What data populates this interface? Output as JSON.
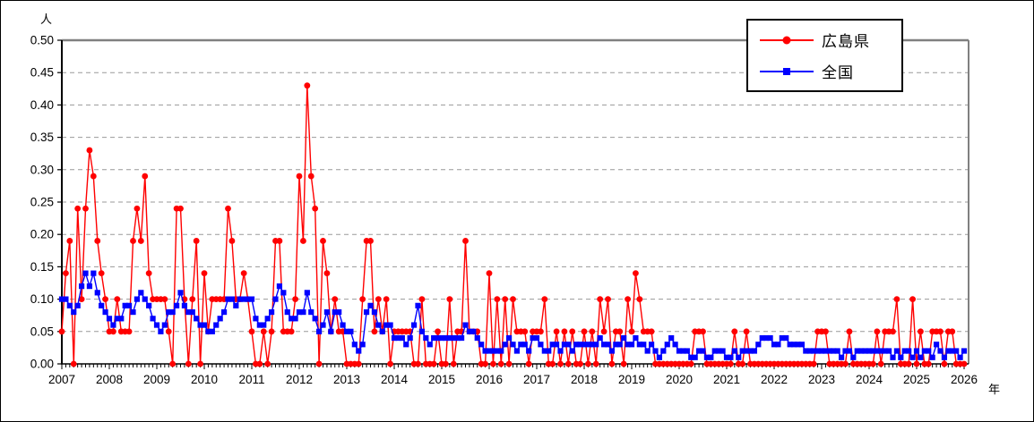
{
  "figure": {
    "y_axis_unit": "人",
    "x_axis_unit": "年",
    "background": "#ffffff",
    "plot_frame_color": "#808080",
    "axis_color": "#000000",
    "gridline_color": "#999999"
  },
  "legend": {
    "position": "top-right",
    "items": [
      {
        "label": "広島県",
        "color": "#ff0000",
        "marker": "circle"
      },
      {
        "label": "全国",
        "color": "#0000ff",
        "marker": "square"
      }
    ]
  },
  "chart_data": {
    "type": "line",
    "title": "",
    "xlabel": "年",
    "ylabel": "人",
    "x_interval": "monthly",
    "x_start_year": 2007,
    "x_end_year": 2026,
    "x_tick_labels": [
      "2007",
      "2008",
      "2009",
      "2010",
      "2011",
      "2012",
      "2013",
      "2014",
      "2015",
      "2016",
      "2017",
      "2018",
      "2019",
      "2020",
      "2021",
      "2022",
      "2023",
      "2024",
      "2025",
      "2026"
    ],
    "y_tick_labels": [
      "0.00",
      "0.05",
      "0.10",
      "0.15",
      "0.20",
      "0.25",
      "0.30",
      "0.35",
      "0.40",
      "0.45",
      "0.50"
    ],
    "ylim": [
      0,
      0.5
    ],
    "ytick_step": 0.05,
    "grid": "horizontal-dashed",
    "legend_position": "top-right",
    "series": [
      {
        "name": "広島県",
        "color": "#ff0000",
        "marker": "circle",
        "values": [
          0.05,
          0.14,
          0.19,
          0.0,
          0.24,
          0.1,
          0.24,
          0.33,
          0.29,
          0.19,
          0.14,
          0.1,
          0.05,
          0.05,
          0.1,
          0.05,
          0.05,
          0.05,
          0.19,
          0.24,
          0.19,
          0.29,
          0.14,
          0.1,
          0.1,
          0.1,
          0.1,
          0.05,
          0.0,
          0.24,
          0.24,
          0.1,
          0.0,
          0.1,
          0.19,
          0.0,
          0.14,
          0.05,
          0.1,
          0.1,
          0.1,
          0.1,
          0.24,
          0.19,
          0.1,
          0.1,
          0.14,
          0.1,
          0.05,
          0.0,
          0.0,
          0.05,
          0.0,
          0.05,
          0.19,
          0.19,
          0.05,
          0.05,
          0.05,
          0.1,
          0.29,
          0.19,
          0.43,
          0.29,
          0.24,
          0.0,
          0.19,
          0.14,
          0.05,
          0.1,
          0.05,
          0.05,
          0.0,
          0.0,
          0.0,
          0.0,
          0.1,
          0.19,
          0.19,
          0.05,
          0.1,
          0.05,
          0.1,
          0.0,
          0.05,
          0.05,
          0.05,
          0.05,
          0.05,
          0.0,
          0.0,
          0.1,
          0.0,
          0.0,
          0.0,
          0.05,
          0.0,
          0.0,
          0.1,
          0.0,
          0.05,
          0.05,
          0.19,
          0.05,
          0.05,
          0.05,
          0.0,
          0.0,
          0.14,
          0.0,
          0.1,
          0.0,
          0.1,
          0.0,
          0.1,
          0.05,
          0.05,
          0.05,
          0.0,
          0.05,
          0.05,
          0.05,
          0.1,
          0.0,
          0.0,
          0.05,
          0.0,
          0.05,
          0.0,
          0.05,
          0.0,
          0.0,
          0.05,
          0.0,
          0.05,
          0.0,
          0.1,
          0.05,
          0.1,
          0.0,
          0.05,
          0.05,
          0.0,
          0.1,
          0.05,
          0.14,
          0.1,
          0.05,
          0.05,
          0.05,
          0.0,
          0.0,
          0.0,
          0.0,
          0.0,
          0.0,
          0.0,
          0.0,
          0.0,
          0.0,
          0.05,
          0.05,
          0.05,
          0.0,
          0.0,
          0.0,
          0.0,
          0.0,
          0.0,
          0.0,
          0.05,
          0.0,
          0.0,
          0.05,
          0.0,
          0.0,
          0.0,
          0.0,
          0.0,
          0.0,
          0.0,
          0.0,
          0.0,
          0.0,
          0.0,
          0.0,
          0.0,
          0.0,
          0.0,
          0.0,
          0.0,
          0.05,
          0.05,
          0.05,
          0.0,
          0.0,
          0.0,
          0.0,
          0.0,
          0.05,
          0.0,
          0.0,
          0.0,
          0.0,
          0.0,
          0.0,
          0.05,
          0.0,
          0.05,
          0.05,
          0.05,
          0.1,
          0.0,
          0.0,
          0.0,
          0.1,
          0.0,
          0.05,
          0.0,
          0.0,
          0.05,
          0.05,
          0.05,
          0.0,
          0.05,
          0.05,
          0.0,
          0.0,
          0.0
        ]
      },
      {
        "name": "全国",
        "color": "#0000ff",
        "marker": "square",
        "values": [
          0.1,
          0.1,
          0.09,
          0.08,
          0.09,
          0.12,
          0.14,
          0.12,
          0.14,
          0.11,
          0.09,
          0.08,
          0.07,
          0.06,
          0.07,
          0.07,
          0.09,
          0.09,
          0.08,
          0.1,
          0.11,
          0.1,
          0.09,
          0.07,
          0.06,
          0.05,
          0.06,
          0.08,
          0.08,
          0.09,
          0.11,
          0.09,
          0.08,
          0.08,
          0.07,
          0.06,
          0.06,
          0.05,
          0.05,
          0.06,
          0.07,
          0.08,
          0.1,
          0.1,
          0.09,
          0.1,
          0.1,
          0.1,
          0.1,
          0.07,
          0.06,
          0.06,
          0.07,
          0.08,
          0.1,
          0.12,
          0.11,
          0.08,
          0.07,
          0.07,
          0.08,
          0.08,
          0.11,
          0.08,
          0.07,
          0.05,
          0.06,
          0.08,
          0.05,
          0.08,
          0.08,
          0.06,
          0.05,
          0.05,
          0.03,
          0.02,
          0.03,
          0.08,
          0.09,
          0.08,
          0.06,
          0.05,
          0.06,
          0.06,
          0.04,
          0.04,
          0.04,
          0.03,
          0.04,
          0.06,
          0.09,
          0.05,
          0.04,
          0.03,
          0.04,
          0.04,
          0.04,
          0.04,
          0.04,
          0.04,
          0.04,
          0.04,
          0.06,
          0.05,
          0.05,
          0.04,
          0.03,
          0.02,
          0.02,
          0.02,
          0.02,
          0.02,
          0.03,
          0.04,
          0.03,
          0.02,
          0.03,
          0.03,
          0.02,
          0.04,
          0.04,
          0.03,
          0.02,
          0.02,
          0.03,
          0.03,
          0.02,
          0.03,
          0.03,
          0.02,
          0.03,
          0.03,
          0.03,
          0.03,
          0.03,
          0.03,
          0.04,
          0.03,
          0.03,
          0.02,
          0.03,
          0.03,
          0.04,
          0.03,
          0.03,
          0.04,
          0.03,
          0.03,
          0.02,
          0.03,
          0.02,
          0.01,
          0.02,
          0.03,
          0.04,
          0.03,
          0.02,
          0.02,
          0.02,
          0.01,
          0.01,
          0.02,
          0.02,
          0.01,
          0.01,
          0.02,
          0.02,
          0.02,
          0.01,
          0.01,
          0.02,
          0.01,
          0.02,
          0.02,
          0.02,
          0.02,
          0.03,
          0.04,
          0.04,
          0.04,
          0.03,
          0.03,
          0.04,
          0.04,
          0.03,
          0.03,
          0.03,
          0.03,
          0.02,
          0.02,
          0.02,
          0.02,
          0.02,
          0.02,
          0.02,
          0.02,
          0.02,
          0.01,
          0.02,
          0.02,
          0.01,
          0.02,
          0.02,
          0.02,
          0.02,
          0.02,
          0.02,
          0.02,
          0.02,
          0.02,
          0.01,
          0.02,
          0.01,
          0.02,
          0.02,
          0.01,
          0.02,
          0.01,
          0.02,
          0.02,
          0.01,
          0.03,
          0.02,
          0.01,
          0.02,
          0.02,
          0.02,
          0.01,
          0.02
        ]
      }
    ]
  }
}
